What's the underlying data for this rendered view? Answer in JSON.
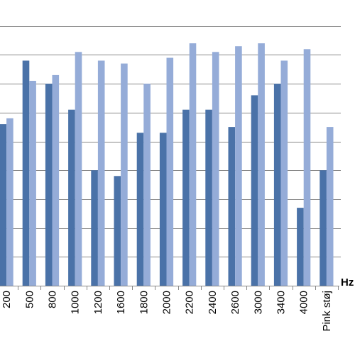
{
  "chart_data": {
    "type": "bar",
    "categories": [
      "200",
      "500",
      "800",
      "1000",
      "1200",
      "1600",
      "1800",
      "2000",
      "2200",
      "2400",
      "2600",
      "3000",
      "3400",
      "4000",
      "Pink støj"
    ],
    "x_unit_label": "Hz",
    "series": [
      {
        "color": "#4a72a8",
        "values": [
          5.6,
          7.8,
          7.0,
          6.1,
          4.0,
          3.8,
          5.3,
          5.3,
          6.1,
          6.1,
          5.5,
          6.6,
          7.0,
          2.7,
          4.0
        ]
      },
      {
        "color": "#95acd8",
        "values": [
          5.8,
          7.1,
          7.3,
          8.1,
          7.8,
          7.7,
          7.0,
          7.9,
          8.4,
          8.1,
          8.3,
          8.4,
          7.8,
          8.2,
          5.5
        ]
      }
    ],
    "ylim": [
      0,
      10
    ],
    "grid": true,
    "gridline_color": "#888888",
    "axis_color": "#888888"
  }
}
